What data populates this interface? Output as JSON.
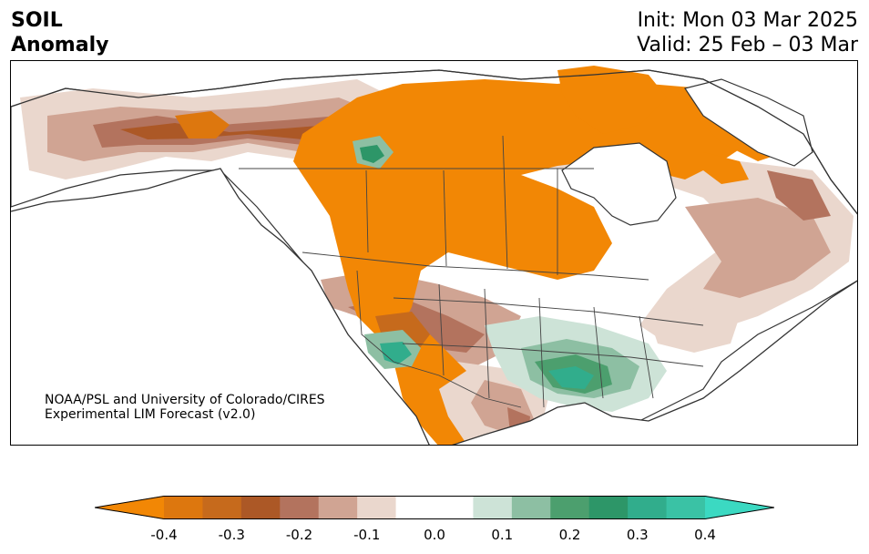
{
  "header": {
    "title_line1": "SOIL",
    "title_line2": "Anomaly",
    "init": "Init: Mon 03 Mar 2025",
    "valid": "Valid: 25 Feb – 03 Mar"
  },
  "credit": {
    "line1": "NOAA/PSL and University of Colorado/CIRES",
    "line2": "Experimental LIM Forecast (v2.0)"
  },
  "colorbar": {
    "colors": [
      "#f28705",
      "#dd770e",
      "#c66a1c",
      "#ac5826",
      "#b3735e",
      "#d0a493",
      "#ead7cd",
      "#ffffff",
      "#ffffff",
      "#cde3d7",
      "#8dbfa3",
      "#4c9f6e",
      "#2d9668",
      "#31ad8c",
      "#3ac2a5",
      "#3bd9c2"
    ],
    "ticks": [
      "-0.4",
      "-0.3",
      "-0.2",
      "-0.1",
      "0.0",
      "0.1",
      "0.2",
      "0.3",
      "0.4"
    ]
  }
}
